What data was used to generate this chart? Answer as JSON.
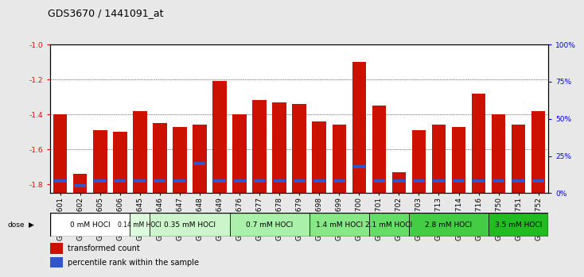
{
  "title": "GDS3670 / 1441091_at",
  "samples": [
    "GSM387601",
    "GSM387602",
    "GSM387605",
    "GSM387606",
    "GSM387645",
    "GSM387646",
    "GSM387647",
    "GSM387648",
    "GSM387649",
    "GSM387676",
    "GSM387677",
    "GSM387678",
    "GSM387679",
    "GSM387698",
    "GSM387699",
    "GSM387700",
    "GSM387701",
    "GSM387702",
    "GSM387703",
    "GSM387713",
    "GSM387714",
    "GSM387716",
    "GSM387750",
    "GSM387751",
    "GSM387752"
  ],
  "transformed_count": [
    -1.4,
    -1.74,
    -1.49,
    -1.5,
    -1.38,
    -1.45,
    -1.47,
    -1.46,
    -1.21,
    -1.4,
    -1.32,
    -1.33,
    -1.34,
    -1.44,
    -1.46,
    -1.1,
    -1.35,
    -1.73,
    -1.49,
    -1.46,
    -1.47,
    -1.28,
    -1.4,
    -1.46,
    -1.38
  ],
  "percentile_values": [
    0.08,
    0.05,
    0.08,
    0.08,
    0.08,
    0.08,
    0.08,
    0.2,
    0.08,
    0.08,
    0.08,
    0.08,
    0.08,
    0.08,
    0.08,
    0.18,
    0.08,
    0.08,
    0.08,
    0.08,
    0.08,
    0.08,
    0.08,
    0.08,
    0.08
  ],
  "dose_groups": [
    {
      "label": "0 mM HOCl",
      "start": 0,
      "end": 4,
      "color": "#ffffff"
    },
    {
      "label": "0.14 mM HOCl",
      "start": 4,
      "end": 5,
      "color": "#ddfcdd"
    },
    {
      "label": "0.35 mM HOCl",
      "start": 5,
      "end": 9,
      "color": "#ccf5cc"
    },
    {
      "label": "0.7 mM HOCl",
      "start": 9,
      "end": 13,
      "color": "#aaf0aa"
    },
    {
      "label": "1.4 mM HOCl",
      "start": 13,
      "end": 16,
      "color": "#88e888"
    },
    {
      "label": "2.1 mM HOCl",
      "start": 16,
      "end": 18,
      "color": "#66dd66"
    },
    {
      "label": "2.8 mM HOCl",
      "start": 18,
      "end": 22,
      "color": "#44cc44"
    },
    {
      "label": "3.5 mM HOCl",
      "start": 22,
      "end": 25,
      "color": "#22bb22"
    }
  ],
  "ylim": [
    -1.85,
    -1.0
  ],
  "yticks": [
    -1.8,
    -1.6,
    -1.4,
    -1.2,
    -1.0
  ],
  "right_yticks": [
    0,
    25,
    50,
    75,
    100
  ],
  "bar_color": "#cc1100",
  "blue_color": "#3355cc",
  "bg_color": "#e8e8e8",
  "plot_bg": "#ffffff",
  "title_fontsize": 9,
  "tick_fontsize": 6.5,
  "label_fontsize": 6.5
}
